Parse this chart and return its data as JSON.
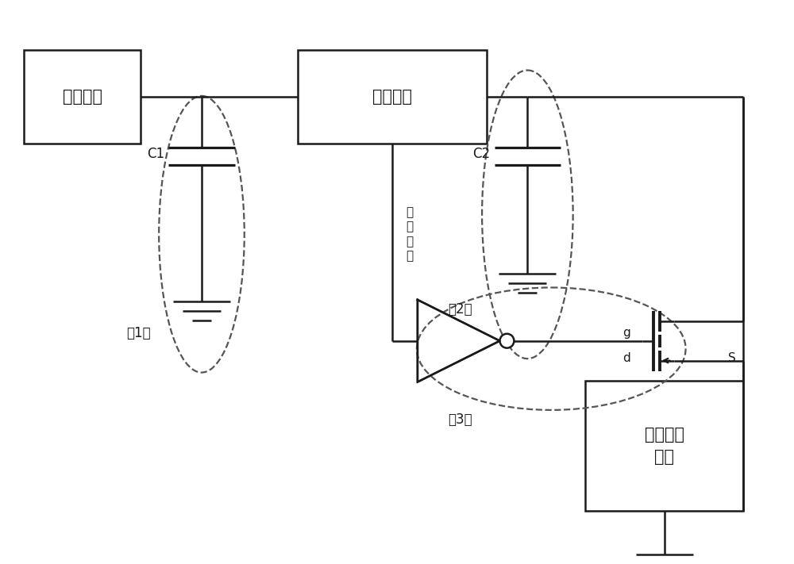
{
  "bg_color": "#ffffff",
  "line_color": "#1a1a1a",
  "dashed_color": "#555555",
  "label_整流输出": "整流输出",
  "label_升压芯片": "升压芯片",
  "label_应用电路": "应用电路\n模块",
  "label_C1": "C1",
  "label_C2": "C2",
  "label_1": "（1）",
  "label_2": "（2）",
  "label_3": "（3）",
  "label_g": "g",
  "label_d": "d",
  "label_S": "S",
  "label_signal": "指\n示\n信\n号",
  "figsize": [
    10.0,
    7.11
  ],
  "dpi": 100
}
